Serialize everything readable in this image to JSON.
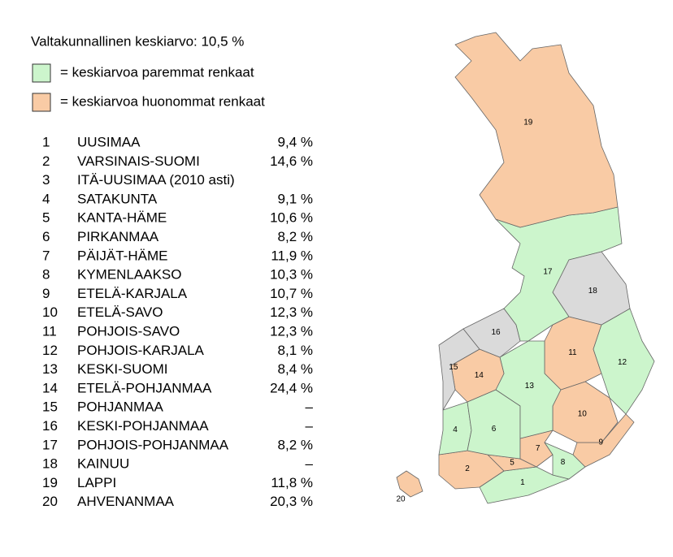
{
  "header": {
    "title": "Valtakunnallinen keskiarvo: 10,5 %"
  },
  "legend": [
    {
      "label": "= keskiarvoa paremmat renkaat",
      "color": "#ccf5cc"
    },
    {
      "label": "= keskiarvoa huonommat renkaat",
      "color": "#f9cba5"
    }
  ],
  "table": {
    "rows": [
      [
        "1",
        "UUSIMAA",
        "9,4 %"
      ],
      [
        "2",
        "VARSINAIS-SUOMI",
        "14,6 %"
      ],
      [
        "3",
        "ITÄ-UUSIMAA (2010 asti)",
        ""
      ],
      [
        "4",
        "SATAKUNTA",
        "9,1 %"
      ],
      [
        "5",
        "KANTA-HÄME",
        "10,6 %"
      ],
      [
        "6",
        "PIRKANMAA",
        "8,2 %"
      ],
      [
        "7",
        "PÄIJÄT-HÄME",
        "11,9 %"
      ],
      [
        "8",
        "KYMENLAAKSO",
        "10,3 %"
      ],
      [
        "9",
        "ETELÄ-KARJALA",
        "10,7 %"
      ],
      [
        "10",
        "ETELÄ-SAVO",
        "12,3 %"
      ],
      [
        "11",
        "POHJOIS-SAVO",
        "12,3 %"
      ],
      [
        "12",
        "POHJOIS-KARJALA",
        "8,1 %"
      ],
      [
        "13",
        "KESKI-SUOMI",
        "8,4 %"
      ],
      [
        "14",
        "ETELÄ-POHJANMAA",
        "24,4 %"
      ],
      [
        "15",
        "POHJANMAA",
        "–"
      ],
      [
        "16",
        "KESKI-POHJANMAA",
        "–"
      ],
      [
        "17",
        "POHJOIS-POHJANMAA",
        "8,2 %"
      ],
      [
        "18",
        "KAINUU",
        "–"
      ],
      [
        "19",
        "LAPPI",
        "11,8 %"
      ],
      [
        "20",
        "AHVENANMAA",
        "20,3 %"
      ]
    ]
  },
  "map": {
    "regions": [
      {
        "label": "1",
        "color": "#ccf5cc"
      },
      {
        "label": "2",
        "color": "#f9cba5"
      },
      {
        "label": "4",
        "color": "#ccf5cc"
      },
      {
        "label": "5",
        "color": "#f9cba5"
      },
      {
        "label": "6",
        "color": "#ccf5cc"
      },
      {
        "label": "7",
        "color": "#f9cba5"
      },
      {
        "label": "8",
        "color": "#ccf5cc"
      },
      {
        "label": "9",
        "color": "#f9cba5"
      },
      {
        "label": "10",
        "color": "#f9cba5"
      },
      {
        "label": "11",
        "color": "#f9cba5"
      },
      {
        "label": "12",
        "color": "#ccf5cc"
      },
      {
        "label": "13",
        "color": "#ccf5cc"
      },
      {
        "label": "14",
        "color": "#f9cba5"
      },
      {
        "label": "15",
        "color": "#dadada"
      },
      {
        "label": "16",
        "color": "#dadada"
      },
      {
        "label": "17",
        "color": "#ccf5cc"
      },
      {
        "label": "18",
        "color": "#dadada"
      },
      {
        "label": "19",
        "color": "#f9cba5"
      },
      {
        "label": "20",
        "color": "#f9cba5"
      }
    ]
  }
}
